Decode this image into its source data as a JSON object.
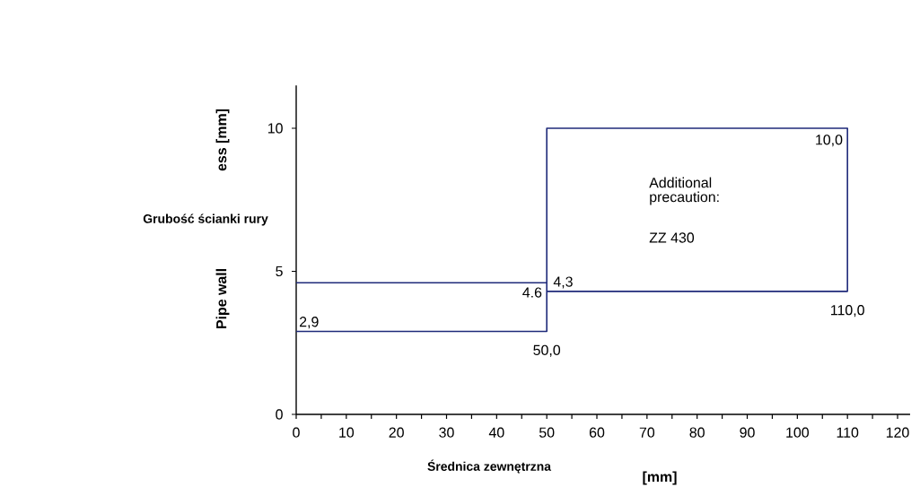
{
  "chart_data": {
    "type": "line",
    "xlabel": "Średnica zewnętrzna",
    "ylabel": "Grubość ścianki rury",
    "xlim": [
      0,
      122.5
    ],
    "ylim": [
      0,
      11.5
    ],
    "xticks": [
      0,
      {
        "value": 5,
        "label": null
      },
      10,
      {
        "value": 15,
        "label": null
      },
      20,
      {
        "value": 25,
        "label": null
      },
      30,
      {
        "value": 35,
        "label": null
      },
      40,
      {
        "value": 45,
        "label": null
      },
      50,
      {
        "value": 55,
        "label": null
      },
      60,
      {
        "value": 65,
        "label": null
      },
      70,
      {
        "value": 75,
        "label": null
      },
      80,
      {
        "value": 85,
        "label": null
      },
      90,
      {
        "value": 95,
        "label": null
      },
      100,
      {
        "value": 105,
        "label": null
      },
      110,
      {
        "value": 115,
        "label": null
      },
      120
    ],
    "yticks": [
      0,
      5,
      10
    ],
    "series": [
      {
        "color": "#1f2a7a",
        "x": [
          0,
          50
        ],
        "values": [
          4.6,
          4.6
        ]
      },
      {
        "color": "#1f2a7a",
        "x": [
          0,
          50,
          50,
          110,
          110,
          50
        ],
        "values": [
          2.9,
          2.9,
          10,
          10,
          4.3,
          4.3
        ]
      }
    ],
    "annotations": [
      "Pipe wall",
      "ess [mm]",
      "[mm]",
      "Additional precaution:",
      "ZZ 430",
      {
        "text": "2,9",
        "x": 0,
        "y": 2.9
      },
      {
        "text": "4.6",
        "x": 50,
        "y": 4.6
      },
      {
        "text": "4,3",
        "x": 50,
        "y": 4.3
      },
      {
        "text": "50,0",
        "x": 50,
        "y": 2.9
      },
      {
        "text": "110,0",
        "x": 110,
        "y": 4.3
      },
      {
        "text": "10,0",
        "x": 110,
        "y": 10
      }
    ]
  }
}
